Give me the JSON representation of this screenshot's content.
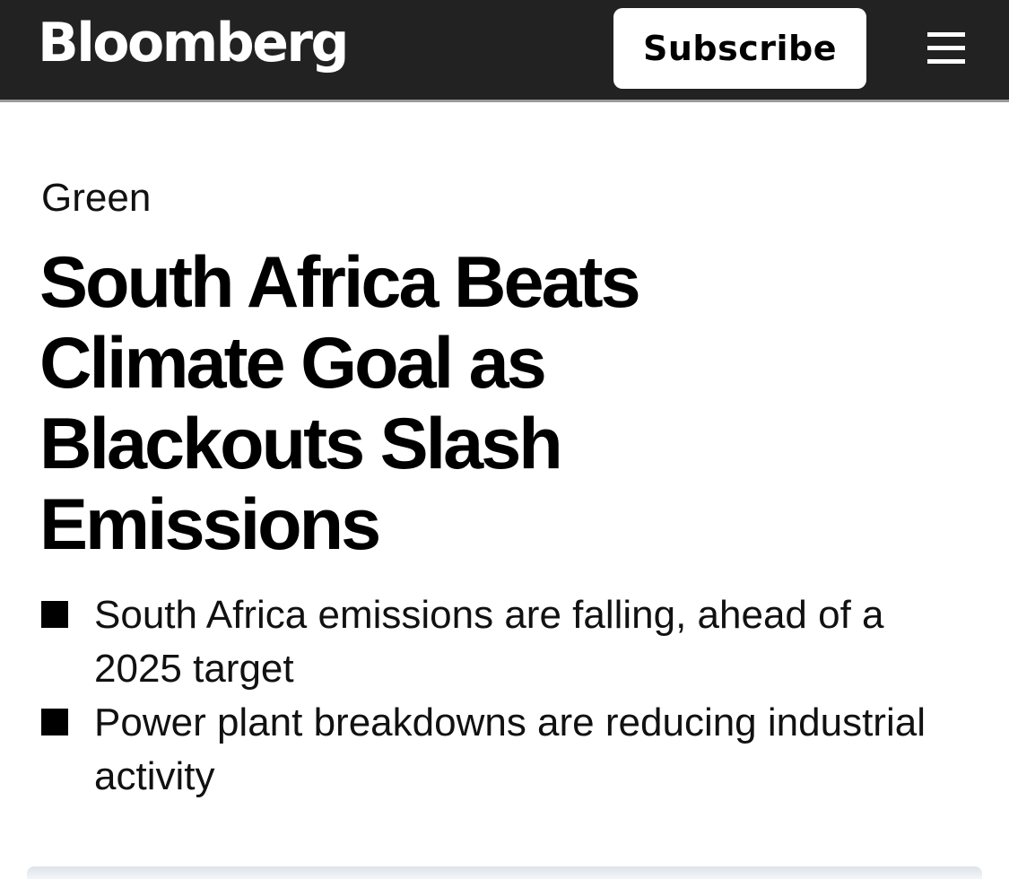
{
  "header": {
    "brand": "Bloomberg",
    "subscribe_label": "Subscribe",
    "menu_icon": "hamburger-menu-icon"
  },
  "article": {
    "kicker": "Green",
    "headline": "South Africa Beats Climate Goal as Blackouts Slash Emissions",
    "bullets": [
      "South Africa emissions are falling, ahead of a 2025 target",
      "Power plant breakdowns are reducing industrial activity"
    ]
  },
  "colors": {
    "header_bg": "#222222",
    "header_border": "#9a9a9a",
    "page_bg": "#ffffff",
    "text": "#000000"
  }
}
